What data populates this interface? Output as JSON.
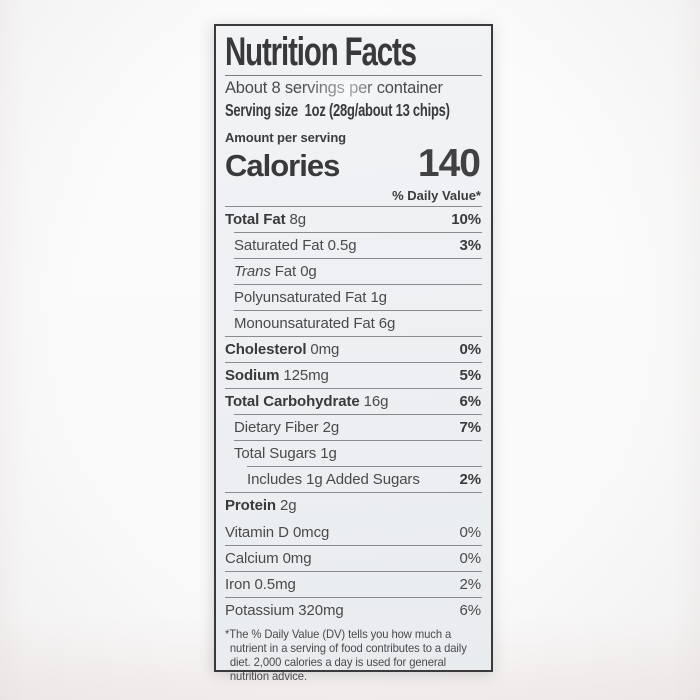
{
  "label": {
    "title": "Nutrition Facts",
    "servings_per_container": "About 8 servings per container",
    "serving_size_label": "Serving size",
    "serving_size_value": "1oz (28g/about 13 chips)",
    "amount_per_serving": "Amount per serving",
    "calories_label": "Calories",
    "calories_value": "140",
    "daily_value_header": "% Daily Value*",
    "nutrients": [
      {
        "name": "Total Fat",
        "amount": "8g",
        "dv": "10%"
      },
      {
        "name": "Saturated Fat",
        "amount": "0.5g",
        "dv": "3%"
      },
      {
        "name_italic": "Trans",
        "name": "Fat",
        "amount": "0g",
        "dv": ""
      },
      {
        "name": "Polyunsaturated Fat",
        "amount": "1g",
        "dv": ""
      },
      {
        "name": "Monounsaturated Fat",
        "amount": "6g",
        "dv": ""
      },
      {
        "name": "Cholesterol",
        "amount": "0mg",
        "dv": "0%"
      },
      {
        "name": "Sodium",
        "amount": "125mg",
        "dv": "5%"
      },
      {
        "name": "Total Carbohydrate",
        "amount": "16g",
        "dv": "6%"
      },
      {
        "name": "Dietary Fiber",
        "amount": "2g",
        "dv": "7%"
      },
      {
        "name": "Total Sugars",
        "amount": "1g",
        "dv": ""
      },
      {
        "name": "Includes 1g Added Sugars",
        "amount": "",
        "dv": "2%"
      },
      {
        "name": "Protein",
        "amount": "2g",
        "dv": ""
      }
    ],
    "micronutrients": [
      {
        "name": "Vitamin D",
        "amount": "0mcg",
        "dv": "0%"
      },
      {
        "name": "Calcium",
        "amount": "0mg",
        "dv": "0%"
      },
      {
        "name": "Iron",
        "amount": "0.5mg",
        "dv": "2%"
      },
      {
        "name": "Potassium",
        "amount": "320mg",
        "dv": "6%"
      }
    ],
    "footnote": "*The % Daily Value (DV) tells you how much a nutrient in a serving of food contributes to a daily diet. 2,000 calories a day is used for general nutrition advice."
  }
}
